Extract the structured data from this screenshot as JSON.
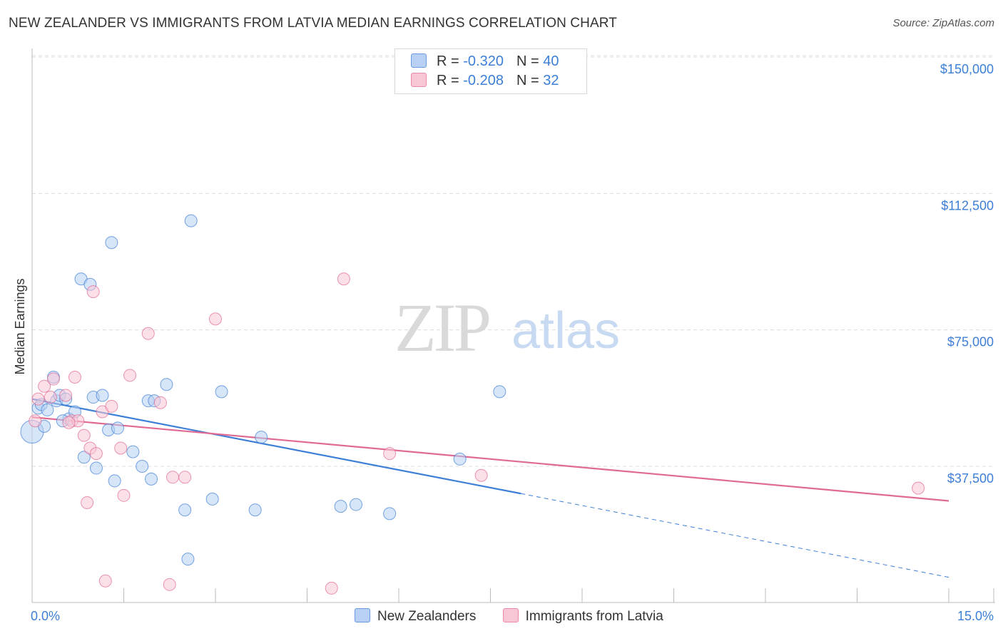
{
  "title": "NEW ZEALANDER VS IMMIGRANTS FROM LATVIA MEDIAN EARNINGS CORRELATION CHART",
  "source": "Source: ZipAtlas.com",
  "watermark": {
    "zip": "ZIP",
    "atlas": "atlas"
  },
  "legend": {
    "r_label": "R =",
    "n_label": "N =",
    "rows": [
      {
        "r": "-0.320",
        "n": "40",
        "fill": "#b7d0f3",
        "stroke": "#6a9be0"
      },
      {
        "r": "-0.208",
        "n": "32",
        "fill": "#f9c6d5",
        "stroke": "#e98aa8"
      }
    ]
  },
  "bottom_legend": [
    "New Zealanders",
    "Immigrants from Latvia"
  ],
  "chart_data": {
    "type": "scatter",
    "title": "NEW ZEALANDER VS IMMIGRANTS FROM LATVIA MEDIAN EARNINGS CORRELATION CHART",
    "xlabel": "",
    "ylabel": "Median Earnings",
    "xlim": [
      0,
      15
    ],
    "ylim": [
      0,
      155000
    ],
    "x_tick_labels": [
      "0.0%",
      "15.0%"
    ],
    "y_ticks": [
      37500,
      75000,
      112500,
      150000
    ],
    "y_tick_labels": [
      "$37,500",
      "$75,000",
      "$112,500",
      "$150,000"
    ],
    "grid": true,
    "series": [
      {
        "name": "New Zealanders",
        "color": "#3d7fd6",
        "fill": "#b7d0f3",
        "points": [
          [
            0.0,
            47000
          ],
          [
            0.1,
            53500
          ],
          [
            0.15,
            54500
          ],
          [
            0.2,
            48500
          ],
          [
            0.25,
            53000
          ],
          [
            0.35,
            62000
          ],
          [
            0.4,
            55500
          ],
          [
            0.45,
            57000
          ],
          [
            0.55,
            56000
          ],
          [
            0.6,
            50500
          ],
          [
            0.7,
            52500
          ],
          [
            0.8,
            89000
          ],
          [
            0.85,
            40000
          ],
          [
            0.95,
            87500
          ],
          [
            1.0,
            56500
          ],
          [
            1.05,
            37000
          ],
          [
            1.15,
            57000
          ],
          [
            1.25,
            47500
          ],
          [
            1.3,
            99000
          ],
          [
            1.35,
            33500
          ],
          [
            1.4,
            48000
          ],
          [
            1.65,
            41500
          ],
          [
            1.8,
            37500
          ],
          [
            1.9,
            55500
          ],
          [
            1.95,
            34000
          ],
          [
            2.0,
            55500
          ],
          [
            2.2,
            60000
          ],
          [
            2.5,
            25500
          ],
          [
            2.55,
            12000
          ],
          [
            2.6,
            105000
          ],
          [
            2.95,
            28500
          ],
          [
            3.1,
            58000
          ],
          [
            3.65,
            25500
          ],
          [
            3.75,
            45500
          ],
          [
            5.05,
            26500
          ],
          [
            5.3,
            27000
          ],
          [
            5.85,
            24500
          ],
          [
            7.0,
            39500
          ],
          [
            7.65,
            58000
          ],
          [
            0.5,
            50000
          ]
        ],
        "trend": {
          "x0": 0.0,
          "y0": 56000,
          "x1": 8.0,
          "y1": 30000
        },
        "trend_dashed": {
          "x0": 8.0,
          "y0": 30000,
          "x1": 15.0,
          "y1": 7000
        }
      },
      {
        "name": "Immigrants from Latvia",
        "color": "#e06a93",
        "fill": "#f9c6d5",
        "points": [
          [
            0.05,
            50000
          ],
          [
            0.1,
            56000
          ],
          [
            0.2,
            59500
          ],
          [
            0.3,
            56500
          ],
          [
            0.35,
            61500
          ],
          [
            0.55,
            57000
          ],
          [
            0.65,
            50000
          ],
          [
            0.7,
            62000
          ],
          [
            0.75,
            50000
          ],
          [
            0.85,
            46000
          ],
          [
            0.9,
            27500
          ],
          [
            0.95,
            42500
          ],
          [
            1.0,
            85500
          ],
          [
            1.05,
            41000
          ],
          [
            1.15,
            52500
          ],
          [
            1.2,
            6000
          ],
          [
            1.3,
            54000
          ],
          [
            1.45,
            42500
          ],
          [
            1.5,
            29500
          ],
          [
            1.6,
            62500
          ],
          [
            1.9,
            74000
          ],
          [
            2.1,
            55000
          ],
          [
            2.25,
            5000
          ],
          [
            2.3,
            34500
          ],
          [
            2.5,
            34500
          ],
          [
            3.0,
            78000
          ],
          [
            4.9,
            4000
          ],
          [
            5.1,
            89000
          ],
          [
            5.85,
            41000
          ],
          [
            7.35,
            35000
          ],
          [
            14.5,
            31500
          ],
          [
            0.6,
            49500
          ]
        ],
        "trend": {
          "x0": 0.0,
          "y0": 51000,
          "x1": 15.0,
          "y1": 28000
        }
      }
    ]
  }
}
